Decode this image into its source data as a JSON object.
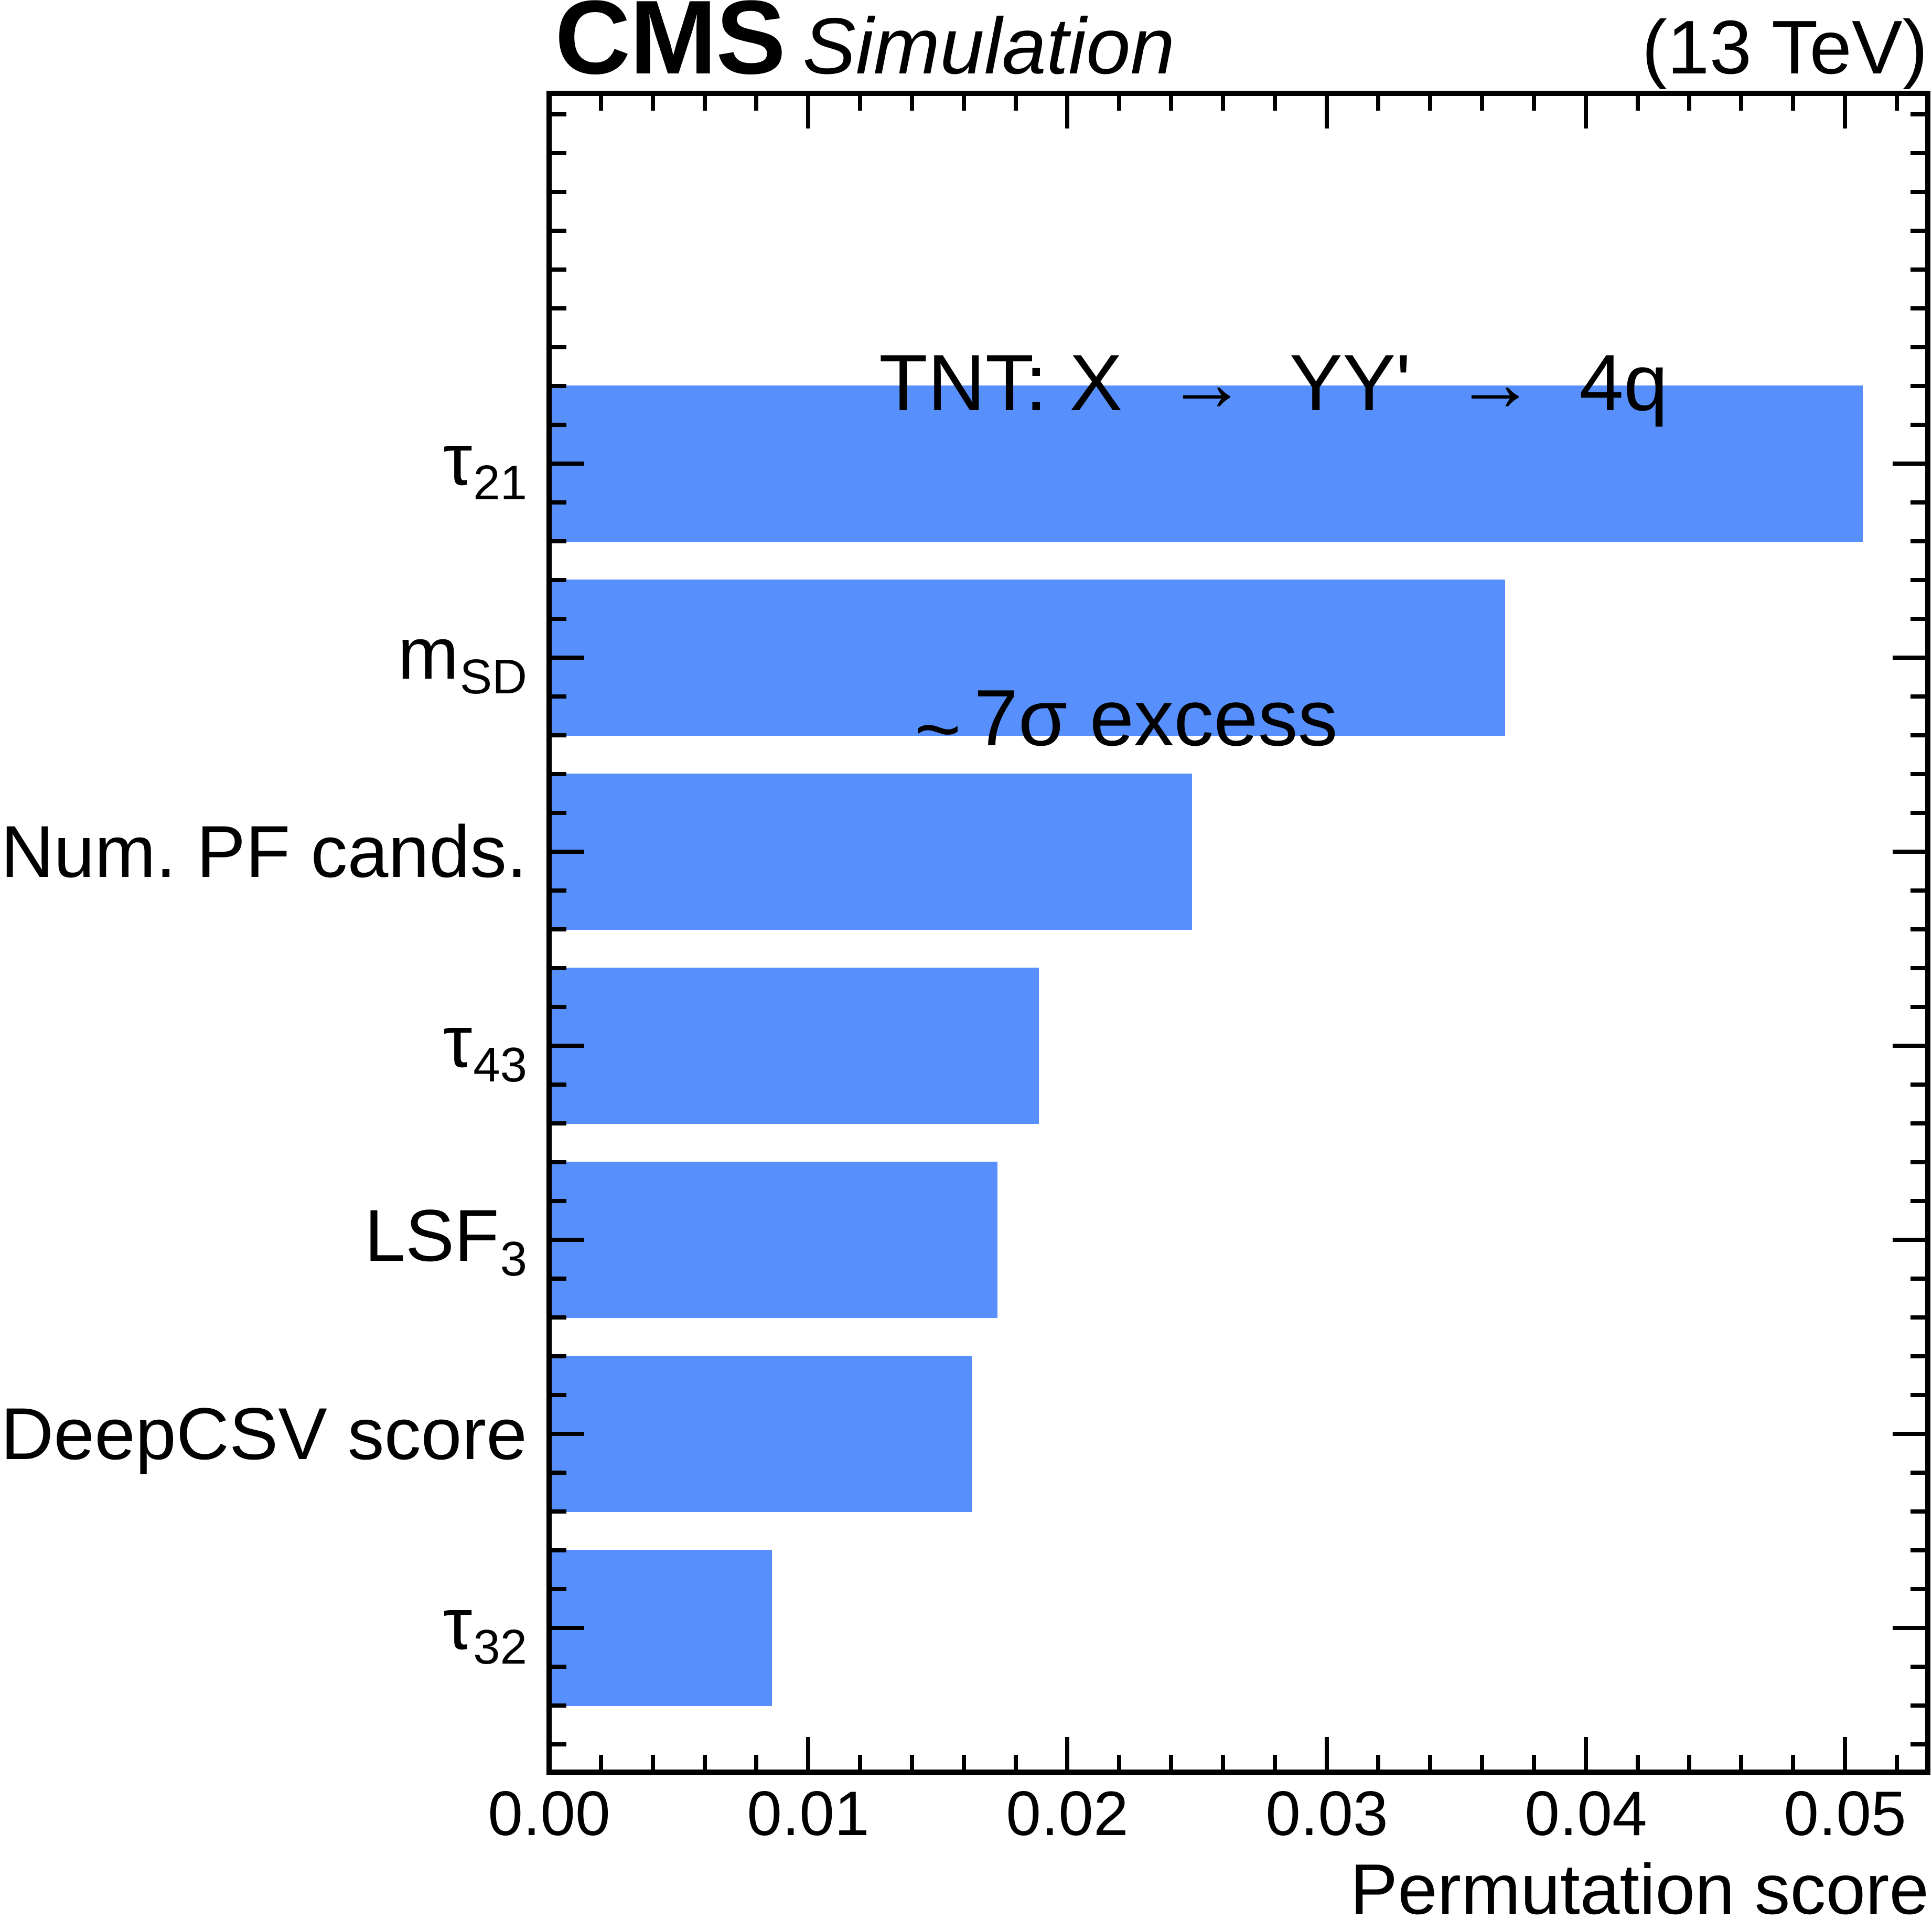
{
  "chart_data": {
    "type": "bar",
    "orientation": "horizontal",
    "header": {
      "experiment": "CMS",
      "experiment_label": "Simulation",
      "energy": "(13 TeV)"
    },
    "title_lines": [
      "TNT: X  →  YY'  →  4q",
      "~7σ excess"
    ],
    "categories": [
      {
        "text": "τ",
        "sub": "21",
        "slug": "tau21"
      },
      {
        "text": "m",
        "sub": "SD",
        "slug": "msd"
      },
      {
        "text": "Num. PF cands.",
        "sub": "",
        "slug": "num-pf-cands"
      },
      {
        "text": "τ",
        "sub": "43",
        "slug": "tau43"
      },
      {
        "text": "LSF",
        "sub": "3",
        "slug": "lsf3"
      },
      {
        "text": "DeepCSV score",
        "sub": "",
        "slug": "deepcsv-score"
      },
      {
        "text": "τ",
        "sub": "32",
        "slug": "tau32"
      }
    ],
    "values": [
      0.0507,
      0.0369,
      0.0248,
      0.0189,
      0.0173,
      0.0163,
      0.0086
    ],
    "xlabel": "Permutation score",
    "xlim": [
      0,
      0.0532
    ],
    "x_tick_values": [
      0,
      0.01,
      0.02,
      0.03,
      0.04,
      0.05
    ],
    "x_tick_labels": [
      "0.00",
      "0.01",
      "0.02",
      "0.03",
      "0.04",
      "0.05"
    ],
    "x_minor_step": 0.002,
    "bar_color": "#5790fc",
    "axis_color": "#000000",
    "background": "#ffffff",
    "grid": false,
    "tick_direction": "in"
  }
}
